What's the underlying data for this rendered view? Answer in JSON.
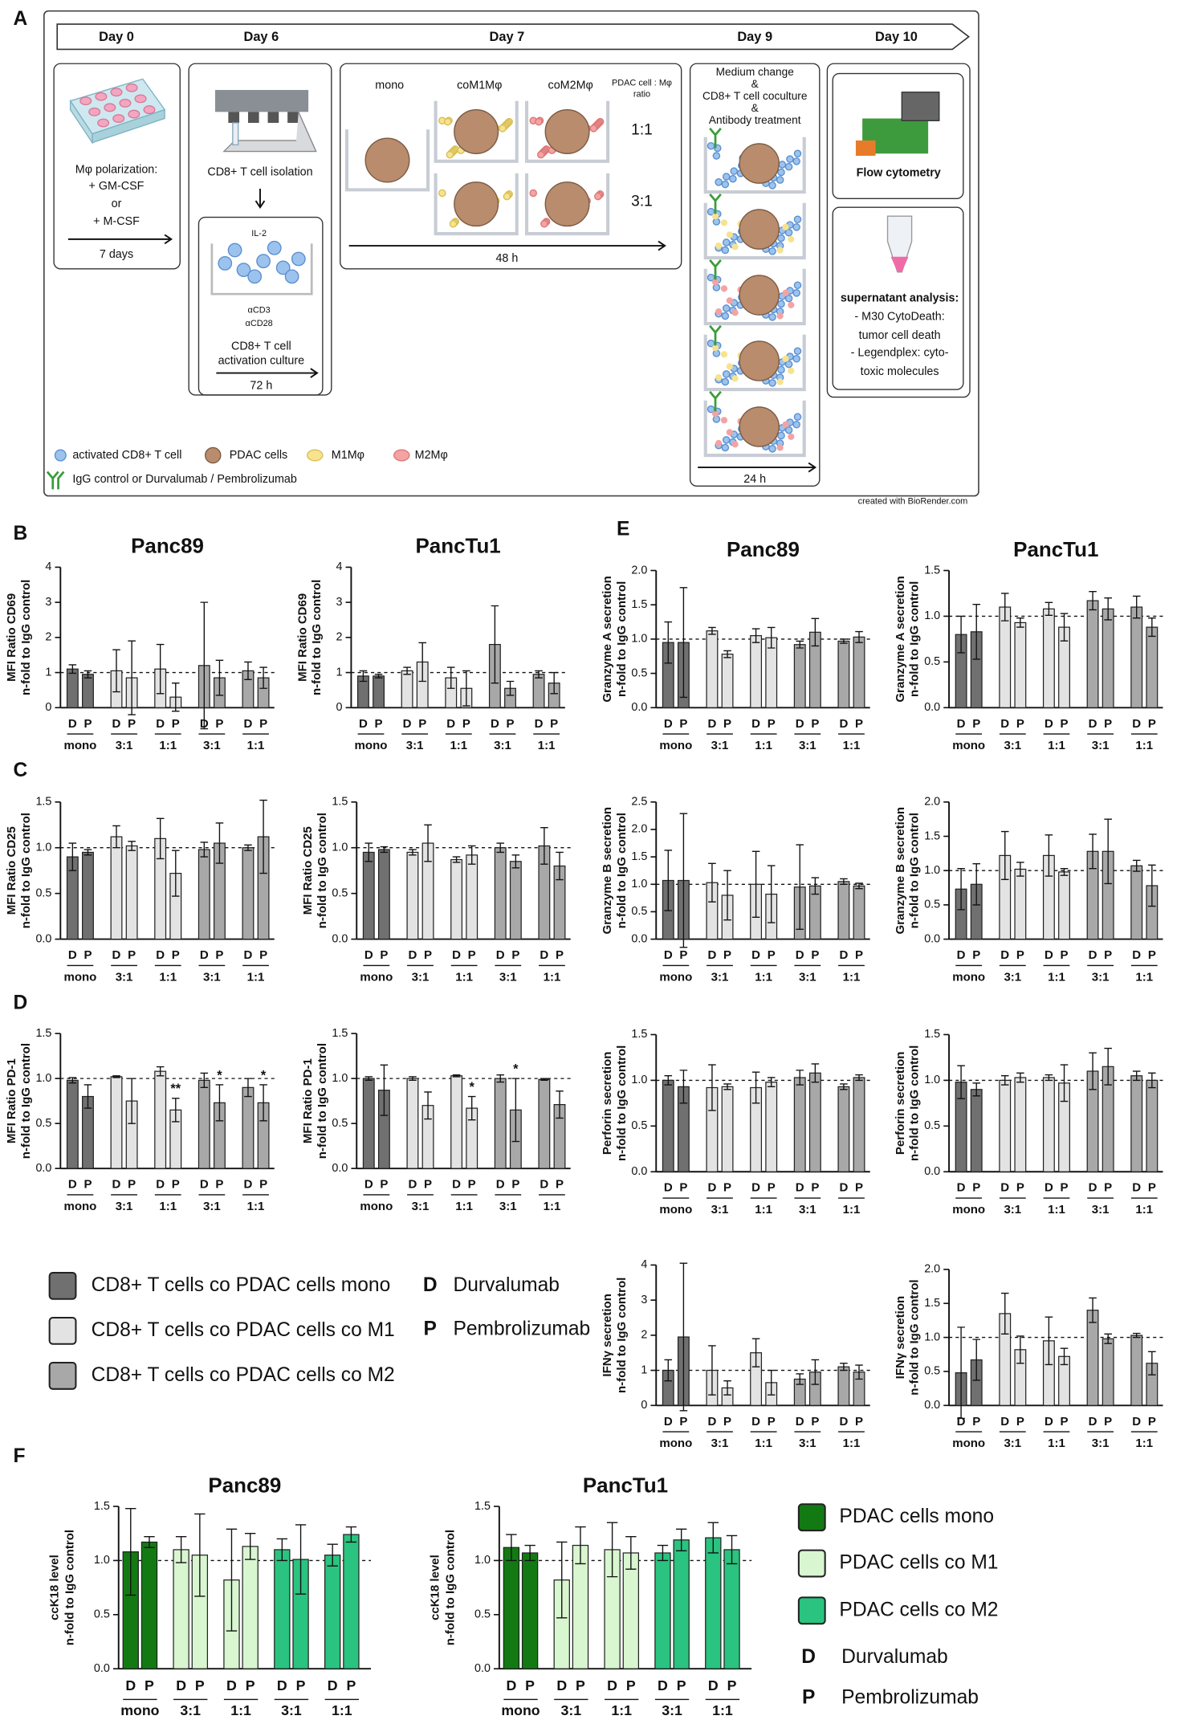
{
  "panel_labels": [
    "A",
    "B",
    "C",
    "D",
    "E",
    "F"
  ],
  "schematic": {
    "days": [
      "Day 0",
      "Day 6",
      "Day 7",
      "Day 9",
      "Day 10"
    ],
    "polarization": {
      "lines": [
        "Mφ polarization:",
        "+ GM-CSF",
        "or",
        "+ M-CSF"
      ],
      "duration": "7 days"
    },
    "isolation": {
      "title": "CD8+ T cell isolation",
      "cytokine": "IL-2",
      "antibodies": [
        "αCD3",
        "αCD28"
      ],
      "lines": [
        "CD8+ T cell",
        "activation culture"
      ],
      "duration": "72 h"
    },
    "coculture": {
      "columns": [
        "mono",
        "coM1Mφ",
        "coM2Mφ"
      ],
      "ratio_header": [
        "PDAC cell : Mφ",
        "ratio"
      ],
      "ratios": [
        "1:1",
        "3:1"
      ],
      "duration": "48 h"
    },
    "treatment": {
      "lines": [
        "Medium change",
        "&",
        "CD8+ T cell coculture",
        "&",
        "Antibody treatment"
      ],
      "duration": "24 h"
    },
    "flow": "Flow cytometry",
    "supernatant": {
      "title": "supernatant analysis:",
      "lines": [
        "- M30 CytoDeath:",
        "tumor cell death",
        "- Legendplex: cyto-",
        "toxic molecules"
      ]
    },
    "legend": [
      "activated CD8+ T cell",
      "PDAC cells",
      "M1Mφ",
      "M2Mφ",
      "IgG control or Durvalumab / Pembrolizumab"
    ],
    "credit": "created with BioRender.com"
  },
  "legend_t_cells": {
    "series": [
      {
        "name": "CD8+ T cells co PDAC cells mono",
        "color": "#707070"
      },
      {
        "name": "CD8+ T cells co PDAC cells co M1",
        "color": "#e3e3e3"
      },
      {
        "name": "CD8+ T cells co PDAC cells co M2",
        "color": "#a8a8a8"
      }
    ],
    "keys": [
      {
        "letter": "D",
        "name": "Durvalumab"
      },
      {
        "letter": "P",
        "name": "Pembrolizumab"
      }
    ]
  },
  "legend_pdac": {
    "series": [
      {
        "name": "PDAC cells mono",
        "color": "#137a13"
      },
      {
        "name": "PDAC cells co M1",
        "color": "#d8f6d0"
      },
      {
        "name": "PDAC cells co M2",
        "color": "#2ac37f"
      }
    ],
    "keys": [
      {
        "letter": "D",
        "name": "Durvalumab"
      },
      {
        "letter": "P",
        "name": "Pembrolizumab"
      }
    ]
  },
  "chart_data": [
    {
      "type": "bar",
      "title": "Panc89",
      "ylabel": [
        "MFI Ratio CD69",
        "n-fold to IgG control"
      ],
      "categories": [
        "D",
        "P",
        "D",
        "P",
        "D",
        "P",
        "D",
        "P",
        "D",
        "P"
      ],
      "groups": [
        "mono",
        "3:1",
        "1:1",
        "3:1",
        "1:1"
      ],
      "values": [
        1.1,
        0.95,
        1.05,
        0.85,
        1.1,
        0.3,
        1.2,
        0.85,
        1.05,
        0.85
      ],
      "errors": [
        0.12,
        0.1,
        0.6,
        1.05,
        0.7,
        0.4,
        1.8,
        0.5,
        0.25,
        0.3
      ],
      "colors": [
        "#707070",
        "#e3e3e3",
        "#a8a8a8"
      ],
      "ylim": [
        0,
        4
      ],
      "yticks": [
        0,
        1,
        2,
        3,
        4
      ],
      "reference_line": 1
    },
    {
      "type": "bar",
      "title": "PancTu1",
      "ylabel": [
        "MFI Ratio CD69",
        "n-fold to IgG control"
      ],
      "categories": [
        "D",
        "P",
        "D",
        "P",
        "D",
        "P",
        "D",
        "P",
        "D",
        "P"
      ],
      "groups": [
        "mono",
        "3:1",
        "1:1",
        "3:1",
        "1:1"
      ],
      "values": [
        0.9,
        0.9,
        1.05,
        1.3,
        0.85,
        0.55,
        1.8,
        0.55,
        0.95,
        0.7
      ],
      "errors": [
        0.15,
        0.05,
        0.1,
        0.55,
        0.3,
        0.5,
        1.1,
        0.2,
        0.1,
        0.3
      ],
      "colors": [
        "#707070",
        "#e3e3e3",
        "#a8a8a8"
      ],
      "ylim": [
        0,
        4
      ],
      "yticks": [
        0,
        1,
        2,
        3,
        4
      ],
      "reference_line": 1
    },
    {
      "type": "bar",
      "ylabel": [
        "MFI Ratio CD25",
        "n-fold to IgG control"
      ],
      "categories": [
        "D",
        "P",
        "D",
        "P",
        "D",
        "P",
        "D",
        "P",
        "D",
        "P"
      ],
      "groups": [
        "mono",
        "3:1",
        "1:1",
        "3:1",
        "1:1"
      ],
      "values": [
        0.9,
        0.95,
        1.12,
        1.02,
        1.1,
        0.72,
        0.98,
        1.05,
        1.0,
        1.12
      ],
      "errors": [
        0.15,
        0.03,
        0.12,
        0.05,
        0.22,
        0.25,
        0.08,
        0.22,
        0.03,
        0.4
      ],
      "colors": [
        "#707070",
        "#e3e3e3",
        "#a8a8a8"
      ],
      "ylim": [
        0,
        1.5
      ],
      "yticks": [
        {
          "value": 0,
          "label": "0.0"
        },
        0.5,
        {
          "value": 1,
          "label": "1.0"
        },
        1.5
      ],
      "reference_line": 1
    },
    {
      "type": "bar",
      "ylabel": [
        "MFI Ratio CD25",
        "n-fold to IgG control"
      ],
      "categories": [
        "D",
        "P",
        "D",
        "P",
        "D",
        "P",
        "D",
        "P",
        "D",
        "P"
      ],
      "groups": [
        "mono",
        "3:1",
        "1:1",
        "3:1",
        "1:1"
      ],
      "values": [
        0.95,
        0.98,
        0.95,
        1.05,
        0.87,
        0.92,
        1.0,
        0.85,
        1.02,
        0.8
      ],
      "errors": [
        0.1,
        0.03,
        0.03,
        0.2,
        0.03,
        0.1,
        0.05,
        0.07,
        0.2,
        0.15
      ],
      "colors": [
        "#707070",
        "#e3e3e3",
        "#a8a8a8"
      ],
      "ylim": [
        0,
        1.5
      ],
      "yticks": [
        {
          "value": 0,
          "label": "0.0"
        },
        0.5,
        {
          "value": 1,
          "label": "1.0"
        },
        1.5
      ],
      "reference_line": 1
    },
    {
      "type": "bar",
      "ylabel": [
        "MFI Ratio PD-1",
        "n-fold to IgG control"
      ],
      "categories": [
        "D",
        "P",
        "D",
        "P",
        "D",
        "P",
        "D",
        "P",
        "D",
        "P"
      ],
      "groups": [
        "mono",
        "3:1",
        "1:1",
        "3:1",
        "1:1"
      ],
      "values": [
        0.98,
        0.8,
        1.02,
        0.75,
        1.08,
        0.65,
        0.98,
        0.73,
        0.9,
        0.73
      ],
      "errors": [
        0.03,
        0.13,
        0.01,
        0.25,
        0.05,
        0.13,
        0.08,
        0.2,
        0.1,
        0.2
      ],
      "significance": [
        null,
        null,
        null,
        null,
        null,
        "**",
        null,
        "*",
        null,
        "*"
      ],
      "colors": [
        "#707070",
        "#e3e3e3",
        "#a8a8a8"
      ],
      "ylim": [
        0,
        1.5
      ],
      "yticks": [
        {
          "value": 0,
          "label": "0.0"
        },
        0.5,
        {
          "value": 1,
          "label": "1.0"
        },
        1.5
      ],
      "reference_line": 1
    },
    {
      "type": "bar",
      "ylabel": [
        "MFI Ratio PD-1",
        "n-fold to IgG control"
      ],
      "categories": [
        "D",
        "P",
        "D",
        "P",
        "D",
        "P",
        "D",
        "P",
        "D",
        "P"
      ],
      "groups": [
        "mono",
        "3:1",
        "1:1",
        "3:1",
        "1:1"
      ],
      "values": [
        1.0,
        0.87,
        1.0,
        0.7,
        1.03,
        0.67,
        1.0,
        0.65,
        0.99,
        0.71
      ],
      "errors": [
        0.02,
        0.28,
        0.02,
        0.15,
        0.01,
        0.13,
        0.04,
        0.35,
        0.01,
        0.15
      ],
      "significance": [
        null,
        null,
        null,
        null,
        null,
        "*",
        null,
        "*",
        null,
        null
      ],
      "colors": [
        "#707070",
        "#e3e3e3",
        "#a8a8a8"
      ],
      "ylim": [
        0,
        1.5
      ],
      "yticks": [
        {
          "value": 0,
          "label": "0.0"
        },
        0.5,
        {
          "value": 1,
          "label": "1.0"
        },
        1.5
      ],
      "reference_line": 1
    },
    {
      "type": "bar",
      "title": "Panc89",
      "ylabel": [
        "Granzyme A secretion",
        "n-fold to IgG control"
      ],
      "categories": [
        "D",
        "P",
        "D",
        "P",
        "D",
        "P",
        "D",
        "P",
        "D",
        "P"
      ],
      "groups": [
        "mono",
        "3:1",
        "1:1",
        "3:1",
        "1:1"
      ],
      "values": [
        0.95,
        0.95,
        1.12,
        0.78,
        1.05,
        1.02,
        0.92,
        1.1,
        0.97,
        1.03
      ],
      "errors": [
        0.3,
        0.8,
        0.05,
        0.05,
        0.1,
        0.15,
        0.05,
        0.2,
        0.03,
        0.08
      ],
      "colors": [
        "#707070",
        "#e3e3e3",
        "#a8a8a8"
      ],
      "ylim": [
        0,
        2
      ],
      "yticks": [
        {
          "value": 0,
          "label": "0.0"
        },
        0.5,
        {
          "value": 1,
          "label": "1.0"
        },
        1.5,
        {
          "value": 2,
          "label": "2.0"
        }
      ],
      "reference_line": 1
    },
    {
      "type": "bar",
      "title": "PancTu1",
      "ylabel": [
        "Granzyme A secretion",
        "n-fold to IgG control"
      ],
      "categories": [
        "D",
        "P",
        "D",
        "P",
        "D",
        "P",
        "D",
        "P",
        "D",
        "P"
      ],
      "groups": [
        "mono",
        "3:1",
        "1:1",
        "3:1",
        "1:1"
      ],
      "values": [
        0.8,
        0.83,
        1.1,
        0.93,
        1.08,
        0.88,
        1.17,
        1.08,
        1.1,
        0.88
      ],
      "errors": [
        0.2,
        0.3,
        0.15,
        0.05,
        0.07,
        0.15,
        0.1,
        0.12,
        0.12,
        0.1
      ],
      "colors": [
        "#707070",
        "#e3e3e3",
        "#a8a8a8"
      ],
      "ylim": [
        0,
        1.5
      ],
      "yticks": [
        {
          "value": 0,
          "label": "0.0"
        },
        0.5,
        {
          "value": 1,
          "label": "1.0"
        },
        1.5
      ],
      "reference_line": 1
    },
    {
      "type": "bar",
      "ylabel": [
        "Granzyme B secretion",
        "n-fold to IgG control"
      ],
      "categories": [
        "D",
        "P",
        "D",
        "P",
        "D",
        "P",
        "D",
        "P",
        "D",
        "P"
      ],
      "groups": [
        "mono",
        "3:1",
        "1:1",
        "3:1",
        "1:1"
      ],
      "values": [
        1.07,
        1.07,
        1.03,
        0.8,
        1.0,
        0.82,
        0.95,
        0.97,
        1.05,
        0.97
      ],
      "errors": [
        0.55,
        1.22,
        0.35,
        0.45,
        0.6,
        0.52,
        0.77,
        0.15,
        0.05,
        0.05
      ],
      "colors": [
        "#707070",
        "#e3e3e3",
        "#a8a8a8"
      ],
      "ylim": [
        0,
        2.5
      ],
      "yticks": [
        {
          "value": 0,
          "label": "0.0"
        },
        0.5,
        {
          "value": 1,
          "label": "1.0"
        },
        1.5,
        {
          "value": 2,
          "label": "2.0"
        },
        2.5
      ],
      "reference_line": 1
    },
    {
      "type": "bar",
      "ylabel": [
        "Granzyme B secretion",
        "n-fold to IgG control"
      ],
      "categories": [
        "D",
        "P",
        "D",
        "P",
        "D",
        "P",
        "D",
        "P",
        "D",
        "P"
      ],
      "groups": [
        "mono",
        "3:1",
        "1:1",
        "3:1",
        "1:1"
      ],
      "values": [
        0.73,
        0.8,
        1.22,
        1.02,
        1.22,
        0.98,
        1.28,
        1.28,
        1.07,
        0.78
      ],
      "errors": [
        0.3,
        0.3,
        0.35,
        0.1,
        0.3,
        0.05,
        0.25,
        0.47,
        0.08,
        0.3
      ],
      "colors": [
        "#707070",
        "#e3e3e3",
        "#a8a8a8"
      ],
      "ylim": [
        0,
        2
      ],
      "yticks": [
        {
          "value": 0,
          "label": "0.0"
        },
        0.5,
        {
          "value": 1,
          "label": "1.0"
        },
        1.5,
        {
          "value": 2,
          "label": "2.0"
        }
      ],
      "reference_line": 1
    },
    {
      "type": "bar",
      "ylabel": [
        "Perforin secretion",
        "n-fold to IgG control"
      ],
      "categories": [
        "D",
        "P",
        "D",
        "P",
        "D",
        "P",
        "D",
        "P",
        "D",
        "P"
      ],
      "groups": [
        "mono",
        "3:1",
        "1:1",
        "3:1",
        "1:1"
      ],
      "values": [
        1.0,
        0.93,
        0.92,
        0.93,
        0.92,
        0.98,
        1.03,
        1.08,
        0.93,
        1.03
      ],
      "errors": [
        0.05,
        0.18,
        0.25,
        0.03,
        0.17,
        0.05,
        0.08,
        0.1,
        0.03,
        0.03
      ],
      "colors": [
        "#707070",
        "#e3e3e3",
        "#a8a8a8"
      ],
      "ylim": [
        0,
        1.5
      ],
      "yticks": [
        {
          "value": 0,
          "label": "0.0"
        },
        0.5,
        {
          "value": 1,
          "label": "1.0"
        },
        1.5
      ],
      "reference_line": 1
    },
    {
      "type": "bar",
      "ylabel": [
        "Perforin secretion",
        "n-fold to IgG control"
      ],
      "categories": [
        "D",
        "P",
        "D",
        "P",
        "D",
        "P",
        "D",
        "P",
        "D",
        "P"
      ],
      "groups": [
        "mono",
        "3:1",
        "1:1",
        "3:1",
        "1:1"
      ],
      "values": [
        0.98,
        0.9,
        1.0,
        1.03,
        1.03,
        0.97,
        1.1,
        1.15,
        1.05,
        1.0
      ],
      "errors": [
        0.18,
        0.07,
        0.05,
        0.05,
        0.03,
        0.2,
        0.2,
        0.2,
        0.05,
        0.08
      ],
      "colors": [
        "#707070",
        "#e3e3e3",
        "#a8a8a8"
      ],
      "ylim": [
        0,
        1.5
      ],
      "yticks": [
        {
          "value": 0,
          "label": "0.0"
        },
        0.5,
        {
          "value": 1,
          "label": "1.0"
        },
        1.5
      ],
      "reference_line": 1
    },
    {
      "type": "bar",
      "ylabel": [
        "IFNγ secretion",
        "n-fold to IgG control"
      ],
      "categories": [
        "D",
        "P",
        "D",
        "P",
        "D",
        "P",
        "D",
        "P",
        "D",
        "P"
      ],
      "groups": [
        "mono",
        "3:1",
        "1:1",
        "3:1",
        "1:1"
      ],
      "values": [
        1.0,
        1.95,
        1.0,
        0.5,
        1.5,
        0.65,
        0.75,
        0.95,
        1.1,
        0.95
      ],
      "errors": [
        0.3,
        2.1,
        0.7,
        0.2,
        0.4,
        0.35,
        0.15,
        0.35,
        0.1,
        0.2
      ],
      "colors": [
        "#707070",
        "#e3e3e3",
        "#a8a8a8"
      ],
      "ylim": [
        0,
        4
      ],
      "yticks": [
        0,
        1,
        2,
        3,
        4
      ],
      "reference_line": 1
    },
    {
      "type": "bar",
      "ylabel": [
        "IFNγ secretion",
        "n-fold to IgG control"
      ],
      "categories": [
        "D",
        "P",
        "D",
        "P",
        "D",
        "P",
        "D",
        "P",
        "D",
        "P"
      ],
      "groups": [
        "mono",
        "3:1",
        "1:1",
        "3:1",
        "1:1"
      ],
      "values": [
        0.48,
        0.67,
        1.35,
        0.82,
        0.95,
        0.72,
        1.4,
        0.98,
        1.03,
        0.62
      ],
      "errors": [
        0.67,
        0.3,
        0.3,
        0.2,
        0.35,
        0.12,
        0.18,
        0.07,
        0.03,
        0.17
      ],
      "colors": [
        "#707070",
        "#e3e3e3",
        "#a8a8a8"
      ],
      "ylim": [
        0,
        2
      ],
      "yticks": [
        {
          "value": 0,
          "label": "0.0"
        },
        0.5,
        {
          "value": 1,
          "label": "1.0"
        },
        1.5,
        {
          "value": 2,
          "label": "2.0"
        }
      ],
      "reference_line": 1
    },
    {
      "type": "bar",
      "title": "Panc89",
      "ylabel": [
        "ccK18 level",
        "n-fold to IgG control"
      ],
      "categories": [
        "D",
        "P",
        "D",
        "P",
        "D",
        "P",
        "D",
        "P",
        "D",
        "P"
      ],
      "groups": [
        "mono",
        "3:1",
        "1:1",
        "3:1",
        "1:1"
      ],
      "values": [
        1.08,
        1.17,
        1.1,
        1.05,
        0.82,
        1.13,
        1.1,
        1.01,
        1.05,
        1.24
      ],
      "errors": [
        0.4,
        0.05,
        0.12,
        0.38,
        0.47,
        0.12,
        0.1,
        0.32,
        0.1,
        0.07
      ],
      "colors": [
        "#137a13",
        "#d8f6d0",
        "#2ac37f"
      ],
      "ylim": [
        0,
        1.5
      ],
      "yticks": [
        {
          "value": 0,
          "label": "0.0"
        },
        0.5,
        {
          "value": 1,
          "label": "1.0"
        },
        1.5
      ],
      "reference_line": 1
    },
    {
      "type": "bar",
      "title": "PancTu1",
      "ylabel": [
        "ccK18 level",
        "n-fold to IgG control"
      ],
      "categories": [
        "D",
        "P",
        "D",
        "P",
        "D",
        "P",
        "D",
        "P",
        "D",
        "P"
      ],
      "groups": [
        "mono",
        "3:1",
        "1:1",
        "3:1",
        "1:1"
      ],
      "values": [
        1.12,
        1.07,
        0.82,
        1.14,
        1.1,
        1.07,
        1.07,
        1.19,
        1.21,
        1.1
      ],
      "errors": [
        0.12,
        0.07,
        0.35,
        0.17,
        0.25,
        0.15,
        0.07,
        0.1,
        0.14,
        0.13
      ],
      "colors": [
        "#137a13",
        "#d8f6d0",
        "#2ac37f"
      ],
      "ylim": [
        0,
        1.5
      ],
      "yticks": [
        {
          "value": 0,
          "label": "0.0"
        },
        0.5,
        {
          "value": 1,
          "label": "1.0"
        },
        1.5
      ],
      "reference_line": 1
    }
  ]
}
